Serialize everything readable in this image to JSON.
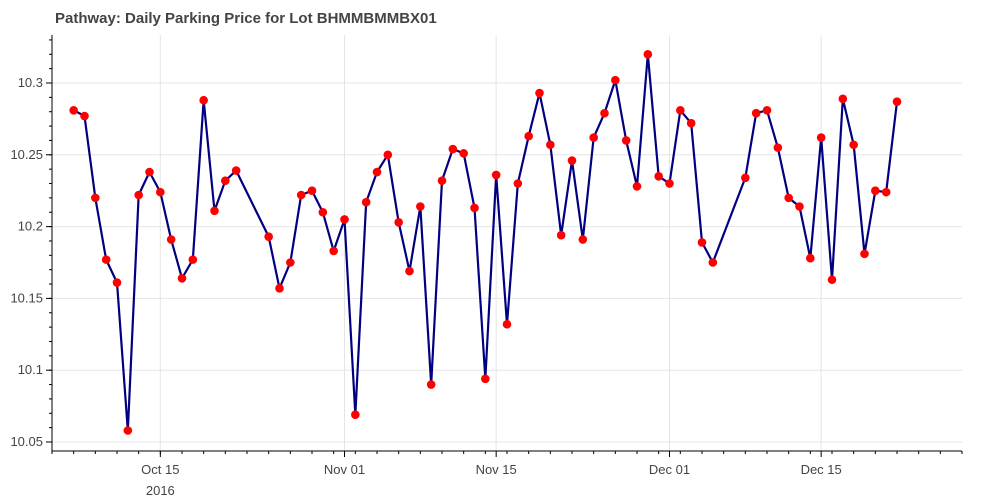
{
  "chart_data": {
    "type": "line",
    "title": "Pathway: Daily Parking Price for Lot BHMMBMMBX01",
    "xlabel": "",
    "ylabel": "",
    "ylim": [
      10.05,
      10.33
    ],
    "y_ticks": [
      10.05,
      10.1,
      10.15,
      10.2,
      10.25,
      10.3
    ],
    "y_tick_labels": [
      "10.05",
      "10.1",
      "10.15",
      "10.2",
      "10.25",
      "10.3"
    ],
    "x_ticks": [
      {
        "date": "2016-10-15",
        "label": "Oct 15",
        "sublabel": "2016"
      },
      {
        "date": "2016-11-01",
        "label": "Nov 01",
        "sublabel": ""
      },
      {
        "date": "2016-11-15",
        "label": "Nov 15",
        "sublabel": ""
      },
      {
        "date": "2016-12-01",
        "label": "Dec 01",
        "sublabel": ""
      },
      {
        "date": "2016-12-15",
        "label": "Dec 15",
        "sublabel": ""
      }
    ],
    "grid": true,
    "line_color": "#000080",
    "marker_color": "#ff0000",
    "series": [
      {
        "points": [
          [
            "2016-10-07",
            10.281
          ],
          [
            "2016-10-08",
            10.277
          ],
          [
            "2016-10-09",
            10.22
          ],
          [
            "2016-10-10",
            10.177
          ],
          [
            "2016-10-11",
            10.161
          ],
          [
            "2016-10-12",
            10.058
          ],
          [
            "2016-10-13",
            10.222
          ],
          [
            "2016-10-14",
            10.238
          ],
          [
            "2016-10-15",
            10.224
          ],
          [
            "2016-10-16",
            10.191
          ],
          [
            "2016-10-17",
            10.164
          ],
          [
            "2016-10-18",
            10.177
          ],
          [
            "2016-10-19",
            10.288
          ],
          [
            "2016-10-20",
            10.211
          ],
          [
            "2016-10-21",
            10.232
          ],
          [
            "2016-10-22",
            10.239
          ],
          [
            "2016-10-25",
            10.193
          ],
          [
            "2016-10-26",
            10.157
          ],
          [
            "2016-10-27",
            10.175
          ],
          [
            "2016-10-28",
            10.222
          ],
          [
            "2016-10-29",
            10.225
          ],
          [
            "2016-10-30",
            10.21
          ],
          [
            "2016-10-31",
            10.183
          ],
          [
            "2016-11-01",
            10.205
          ],
          [
            "2016-11-02",
            10.069
          ],
          [
            "2016-11-03",
            10.217
          ],
          [
            "2016-11-04",
            10.238
          ],
          [
            "2016-11-05",
            10.25
          ],
          [
            "2016-11-06",
            10.203
          ],
          [
            "2016-11-07",
            10.169
          ],
          [
            "2016-11-08",
            10.214
          ],
          [
            "2016-11-09",
            10.09
          ],
          [
            "2016-11-10",
            10.232
          ],
          [
            "2016-11-11",
            10.254
          ],
          [
            "2016-11-12",
            10.251
          ],
          [
            "2016-11-13",
            10.213
          ],
          [
            "2016-11-14",
            10.094
          ],
          [
            "2016-11-15",
            10.236
          ],
          [
            "2016-11-16",
            10.132
          ],
          [
            "2016-11-17",
            10.23
          ],
          [
            "2016-11-18",
            10.263
          ],
          [
            "2016-11-19",
            10.293
          ],
          [
            "2016-11-20",
            10.257
          ],
          [
            "2016-11-21",
            10.194
          ],
          [
            "2016-11-22",
            10.246
          ],
          [
            "2016-11-23",
            10.191
          ],
          [
            "2016-11-24",
            10.262
          ],
          [
            "2016-11-25",
            10.279
          ],
          [
            "2016-11-26",
            10.302
          ],
          [
            "2016-11-27",
            10.26
          ],
          [
            "2016-11-28",
            10.228
          ],
          [
            "2016-11-29",
            10.32
          ],
          [
            "2016-11-30",
            10.235
          ],
          [
            "2016-12-01",
            10.23
          ],
          [
            "2016-12-02",
            10.281
          ],
          [
            "2016-12-03",
            10.272
          ],
          [
            "2016-12-04",
            10.189
          ],
          [
            "2016-12-05",
            10.175
          ],
          [
            "2016-12-08",
            10.234
          ],
          [
            "2016-12-09",
            10.279
          ],
          [
            "2016-12-10",
            10.281
          ],
          [
            "2016-12-11",
            10.255
          ],
          [
            "2016-12-12",
            10.22
          ],
          [
            "2016-12-13",
            10.214
          ],
          [
            "2016-12-14",
            10.178
          ],
          [
            "2016-12-15",
            10.262
          ],
          [
            "2016-12-16",
            10.163
          ],
          [
            "2016-12-17",
            10.289
          ],
          [
            "2016-12-18",
            10.257
          ],
          [
            "2016-12-19",
            10.181
          ],
          [
            "2016-12-20",
            10.225
          ],
          [
            "2016-12-21",
            10.224
          ],
          [
            "2016-12-22",
            10.287
          ]
        ]
      }
    ]
  }
}
